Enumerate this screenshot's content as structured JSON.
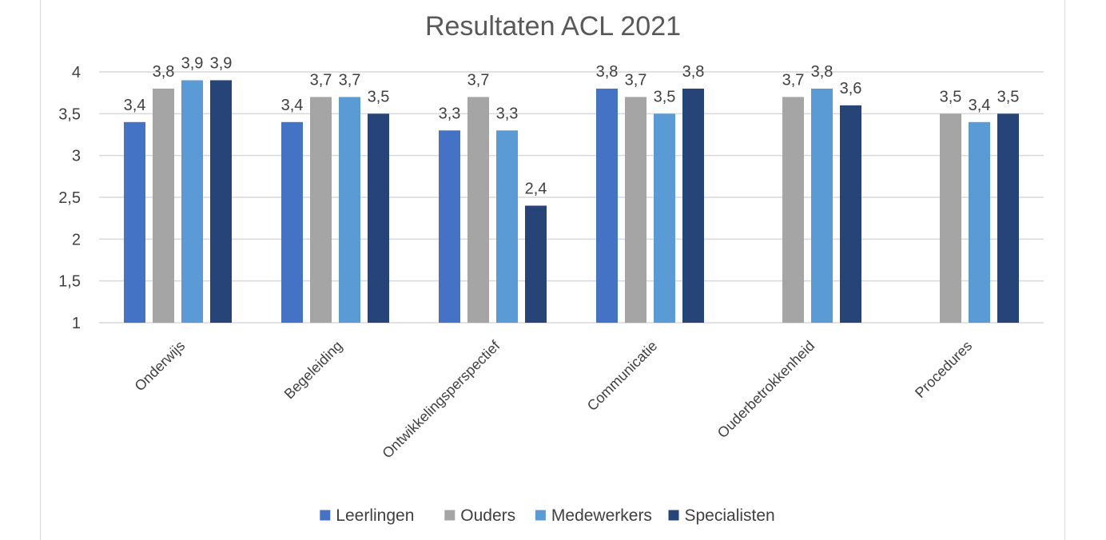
{
  "chart_data": {
    "type": "bar",
    "title": "Resultaten ACL 2021",
    "categories": [
      "Onderwijs",
      "Begeleiding",
      "Ontwikkelingsperspectief",
      "Communicatie",
      "Ouderbetrokkenheid",
      "Procedures"
    ],
    "series": [
      {
        "name": "Leerlingen",
        "color": "#4472C4",
        "values": [
          3.4,
          3.4,
          3.3,
          3.8,
          null,
          null
        ],
        "labels": [
          "3,4",
          "3,4",
          "3,3",
          "3,8",
          null,
          null
        ]
      },
      {
        "name": "Ouders",
        "color": "#A5A5A5",
        "values": [
          3.8,
          3.7,
          3.7,
          3.7,
          3.7,
          3.5
        ],
        "labels": [
          "3,8",
          "3,7",
          "3,7",
          "3,7",
          "3,7",
          "3,5"
        ]
      },
      {
        "name": "Medewerkers",
        "color": "#5B9BD5",
        "values": [
          3.9,
          3.7,
          3.3,
          3.5,
          3.8,
          3.4
        ],
        "labels": [
          "3,9",
          "3,7",
          "3,3",
          "3,5",
          "3,8",
          "3,4"
        ]
      },
      {
        "name": "Specialisten",
        "color": "#264478",
        "values": [
          3.9,
          3.5,
          2.4,
          3.8,
          3.6,
          3.5
        ],
        "labels": [
          "3,9",
          "3,5",
          "2,4",
          "3,8",
          "3,6",
          "3,5"
        ]
      }
    ],
    "ylim": [
      1,
      4
    ],
    "yticks": [
      {
        "value": 4,
        "label": "4"
      },
      {
        "value": 3.5,
        "label": "3,5"
      },
      {
        "value": 3,
        "label": "3"
      },
      {
        "value": 2.5,
        "label": "2,5"
      },
      {
        "value": 2,
        "label": "2"
      },
      {
        "value": 1.5,
        "label": "1,5"
      },
      {
        "value": 1,
        "label": "1"
      }
    ],
    "grid": true,
    "legend_position": "bottom"
  }
}
